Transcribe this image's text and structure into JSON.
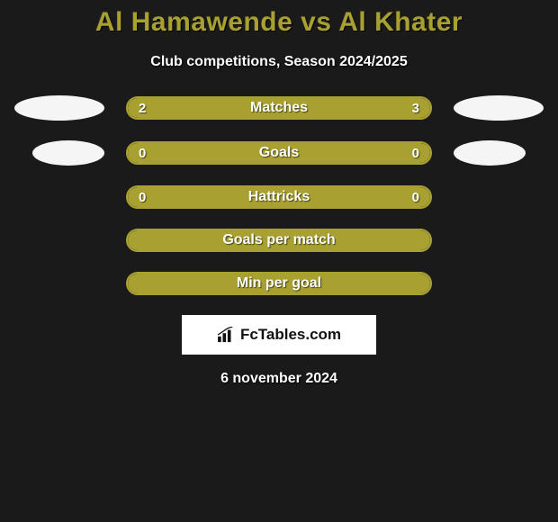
{
  "background_color": "#1a1a1a",
  "title": {
    "text": "Al Hamawende vs Al Khater",
    "color": "#a8a030",
    "fontsize": 30
  },
  "subtitle": {
    "text": "Club competitions, Season 2024/2025",
    "color": "#ffffff",
    "fontsize": 16
  },
  "ellipse_color": "#f5f5f5",
  "rows": [
    {
      "label": "Matches",
      "left_val": "2",
      "right_val": "3",
      "left_pct": 40,
      "border_color": "#a8a030",
      "fill_color": "#a8a030",
      "show_ellipses": true,
      "ellipse_narrow": false,
      "show_values": true,
      "full_fill": true
    },
    {
      "label": "Goals",
      "left_val": "0",
      "right_val": "0",
      "left_pct": 0,
      "border_color": "#a8a030",
      "fill_color": "#a8a030",
      "show_ellipses": true,
      "ellipse_narrow": true,
      "show_values": true,
      "full_fill": true
    },
    {
      "label": "Hattricks",
      "left_val": "0",
      "right_val": "0",
      "left_pct": 0,
      "border_color": "#a8a030",
      "fill_color": "#a8a030",
      "show_ellipses": false,
      "ellipse_narrow": false,
      "show_values": true,
      "full_fill": true
    },
    {
      "label": "Goals per match",
      "left_val": "",
      "right_val": "",
      "left_pct": 0,
      "border_color": "#a8a030",
      "fill_color": "#a8a030",
      "show_ellipses": false,
      "ellipse_narrow": false,
      "show_values": false,
      "full_fill": true
    },
    {
      "label": "Min per goal",
      "left_val": "",
      "right_val": "",
      "left_pct": 0,
      "border_color": "#a8a030",
      "fill_color": "#a8a030",
      "show_ellipses": false,
      "ellipse_narrow": false,
      "show_values": false,
      "full_fill": true
    }
  ],
  "brand": {
    "text": "FcTables.com",
    "box_bg": "#ffffff",
    "text_color": "#111111"
  },
  "date": {
    "text": "6 november 2024",
    "color": "#ffffff",
    "fontsize": 16
  }
}
